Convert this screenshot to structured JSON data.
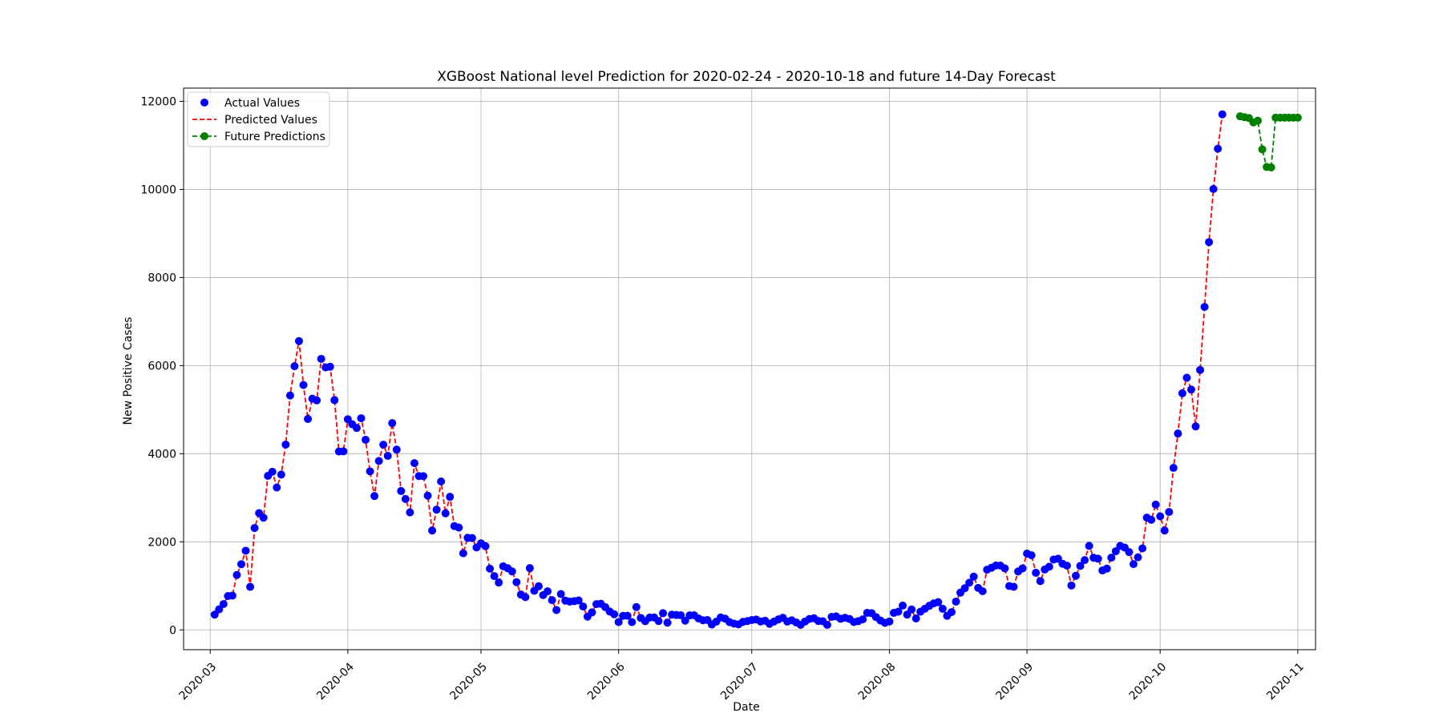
{
  "chart_data": {
    "type": "line",
    "title": "XGBoost National level Prediction for 2020-02-24 - 2020-10-18 and future 14-Day Forecast",
    "xlabel": "Date",
    "ylabel": "New Positive Cases",
    "xlim": [
      "2020-02-24",
      "2020-11-05"
    ],
    "ylim": [
      -450,
      12300
    ],
    "x_ticks": [
      "2020-03",
      "2020-04",
      "2020-05",
      "2020-06",
      "2020-07",
      "2020-08",
      "2020-09",
      "2020-10",
      "2020-11"
    ],
    "y_ticks": [
      0,
      2000,
      4000,
      6000,
      8000,
      10000,
      12000
    ],
    "grid": true,
    "legend_position": "top-left",
    "start_date": "2020-03-02",
    "series": [
      {
        "name": "Actual Values",
        "style": "scatter",
        "color": "#0000ff",
        "values": [
          346,
          466,
          587,
          769,
          778,
          1247,
          1492,
          1797,
          977,
          2313,
          2651,
          2547,
          3497,
          3590,
          3233,
          3526,
          4207,
          5322,
          5986,
          6557,
          5560,
          4789,
          5249,
          5210,
          6153,
          5959,
          5974,
          5217,
          4050,
          4053,
          4782,
          4668,
          4585,
          4805,
          4316,
          3599,
          3039,
          3836,
          4204,
          3951,
          4694,
          4092,
          3153,
          2972,
          2667,
          3786,
          3493,
          3491,
          3047,
          2256,
          2729,
          3370,
          2646,
          3021,
          2357,
          2324,
          1739,
          2091,
          2086,
          1872,
          1965,
          1900,
          1389,
          1221,
          1075,
          1444,
          1401,
          1327,
          1083,
          802,
          744,
          1402,
          888,
          992,
          789,
          875,
          675,
          451,
          813,
          665,
          642,
          652,
          669,
          531,
          300,
          397,
          584,
          593,
          516,
          416,
          355,
          178,
          318,
          321,
          177,
          518,
          270,
          197,
          280,
          283,
          202,
          379,
          163,
          346,
          338,
          331,
          210,
          329,
          333,
          259,
          218,
          224,
          122,
          187,
          282,
          255,
          175,
          142,
          126,
          182,
          201,
          223,
          235,
          192,
          208,
          138,
          188,
          238,
          276,
          188,
          218,
          169,
          114,
          190,
          249,
          264,
          202,
          196,
          114,
          295,
          306,
          252,
          276,
          249,
          178,
          199,
          239,
          386,
          379,
          289,
          212,
          159,
          190,
          386,
          412,
          552,
          347,
          463,
          259,
          412,
          481,
          547,
          603,
          629,
          479,
          320,
          403,
          642,
          845,
          947,
          1071,
          1210,
          953,
          878,
          1367,
          1411,
          1462,
          1460,
          1397,
          996,
          978,
          1326,
          1397,
          1733,
          1694,
          1297,
          1108,
          1370,
          1434,
          1597,
          1616,
          1501,
          1458,
          1008,
          1229,
          1452,
          1585,
          1907,
          1638,
          1616,
          1350,
          1392,
          1640,
          1786,
          1907,
          1869,
          1766,
          1494,
          1648,
          1851,
          2548,
          2499,
          2844,
          2578,
          2257,
          2677,
          3678,
          4458,
          5372,
          5724,
          5456,
          4619,
          5901,
          7332,
          8804,
          10010,
          10925,
          11705
        ]
      },
      {
        "name": "Predicted Values",
        "style": "dashed-line",
        "color": "#ff0000",
        "same_as": "Actual Values"
      },
      {
        "name": "Future Predictions",
        "style": "dashed-line-markers",
        "color": "#008000",
        "start_date": "2020-10-19",
        "values": [
          11660,
          11640,
          11620,
          11520,
          11560,
          10910,
          10510,
          10500,
          11630,
          11630,
          11630,
          11630,
          11630,
          11630
        ]
      }
    ]
  }
}
